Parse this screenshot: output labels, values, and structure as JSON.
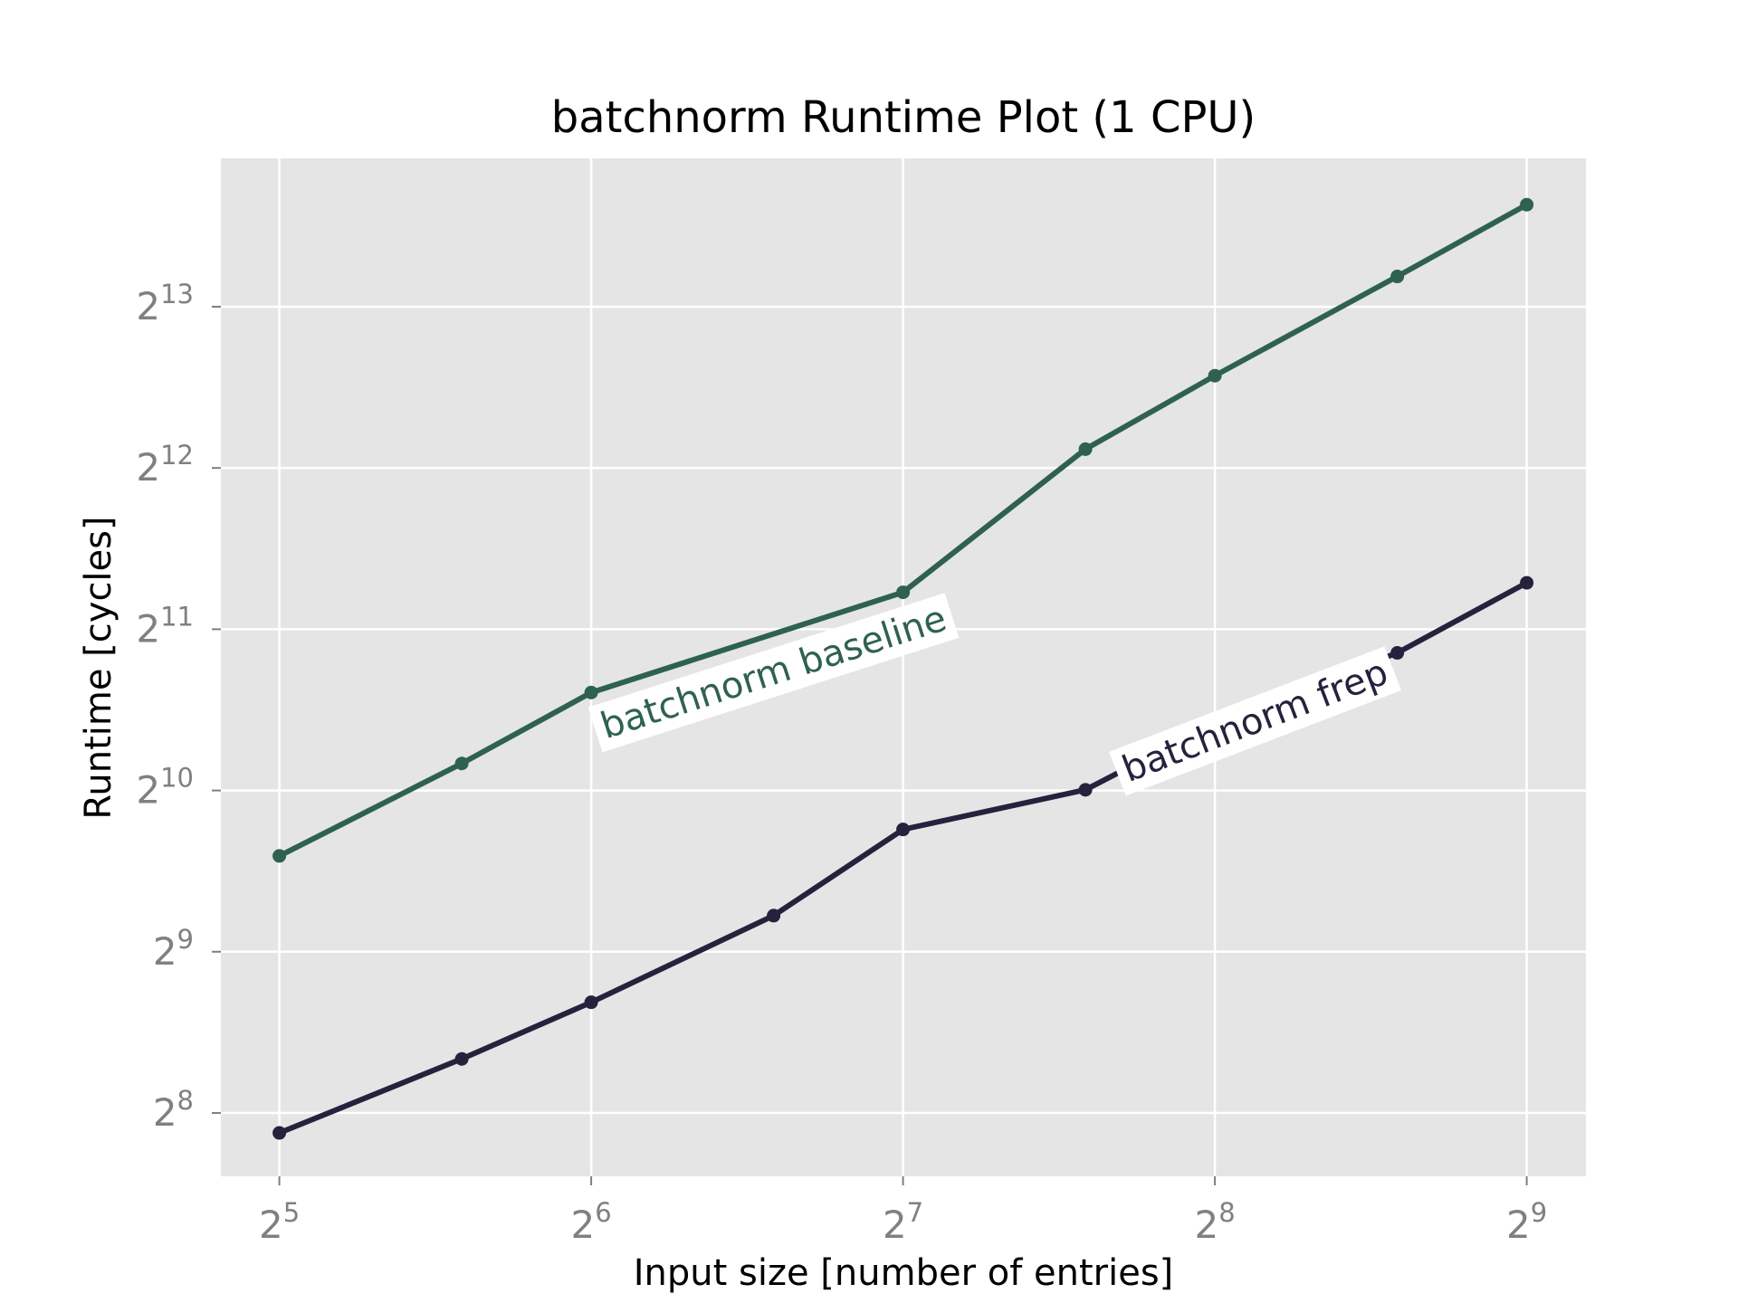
{
  "chart_data": {
    "type": "line",
    "title": "batchnorm Runtime Plot (1 CPU)",
    "xlabel": "Input size [number of entries]",
    "ylabel": "Runtime [cycles]",
    "x_scale": "log2",
    "y_scale": "log2",
    "xlim": [
      28.1,
      584
    ],
    "ylim": [
      195,
      15500
    ],
    "x_ticks": [
      {
        "value": 32,
        "base": "2",
        "exp": "5"
      },
      {
        "value": 64,
        "base": "2",
        "exp": "6"
      },
      {
        "value": 128,
        "base": "2",
        "exp": "7"
      },
      {
        "value": 256,
        "base": "2",
        "exp": "8"
      },
      {
        "value": 512,
        "base": "2",
        "exp": "9"
      }
    ],
    "y_ticks": [
      {
        "value": 256,
        "base": "2",
        "exp": "8"
      },
      {
        "value": 512,
        "base": "2",
        "exp": "9"
      },
      {
        "value": 1024,
        "base": "2",
        "exp": "10"
      },
      {
        "value": 2048,
        "base": "2",
        "exp": "11"
      },
      {
        "value": 4096,
        "base": "2",
        "exp": "12"
      },
      {
        "value": 8192,
        "base": "2",
        "exp": "13"
      }
    ],
    "grid": true,
    "legend": "inline labels",
    "series": [
      {
        "name": "batchnorm baseline",
        "color": "#2f6150",
        "x": [
          32,
          48,
          64,
          128,
          192,
          256,
          384,
          512
        ],
        "y": [
          773,
          1150,
          1560,
          2400,
          4440,
          6090,
          9330,
          12700
        ],
        "label_at": [
          96,
          1700
        ]
      },
      {
        "name": "batchnorm frep",
        "color": "#25223d",
        "x": [
          32,
          48,
          64,
          96,
          128,
          192,
          256,
          384,
          512
        ],
        "y": [
          235,
          323,
          412,
          598,
          866,
          1027,
          1370,
          1850,
          2500
        ],
        "label_at": [
          280,
          1380
        ]
      }
    ]
  }
}
